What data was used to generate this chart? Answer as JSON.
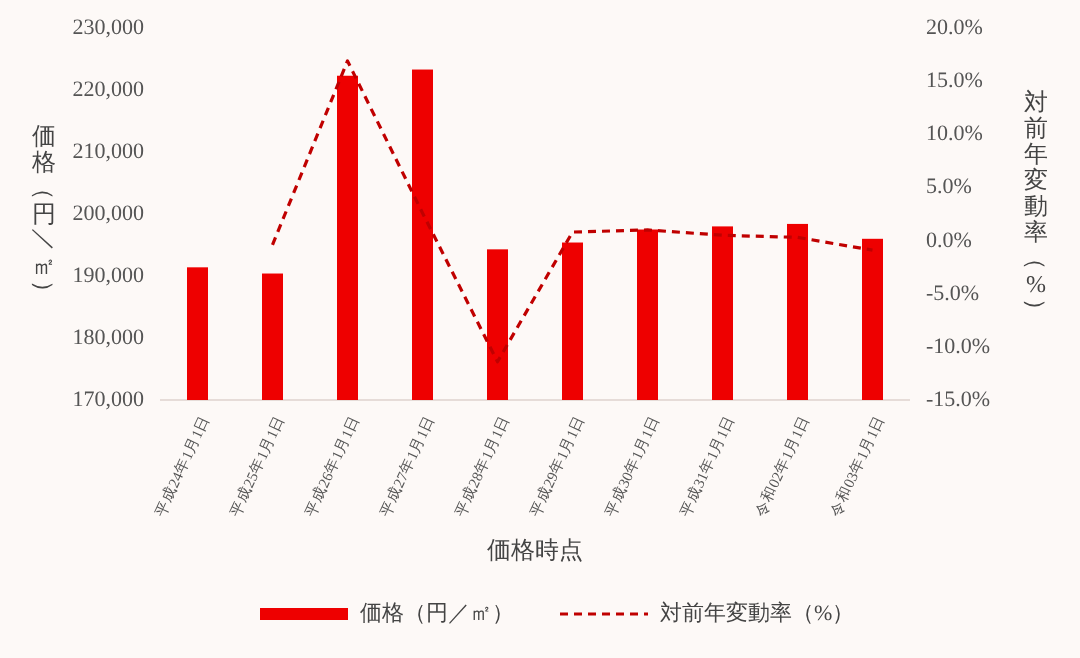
{
  "chart_data": {
    "type": "bar",
    "xlabel": "価格時点",
    "ylabel": "価格（円／㎡）",
    "y2label": "対前年変動率（%）",
    "categories": [
      "平成24年1月1日",
      "平成25年1月1日",
      "平成26年1月1日",
      "平成27年1月1日",
      "平成28年1月1日",
      "平成29年1月1日",
      "平成30年1月1日",
      "平成31年1月1日",
      "令和02年1月1日",
      "令和03年1月1日"
    ],
    "series": [
      {
        "name": "価格（円／㎡）",
        "color": "#ee0000",
        "values": [
          191400,
          190400,
          222300,
          223300,
          194300,
          195400,
          197500,
          198000,
          198400,
          196000
        ]
      },
      {
        "name": "対前年変動率（%）",
        "type": "line",
        "axis": "y2",
        "color": "#c00000",
        "line_style": "dashed",
        "marker": "none",
        "values": [
          null,
          -0.4,
          16.9,
          2.6,
          -11.4,
          0.8,
          1.0,
          0.5,
          0.3,
          -0.9
        ]
      }
    ],
    "ylim": [
      170000,
      230000
    ],
    "yticks": [
      {
        "value": 170000,
        "label": "170,000"
      },
      {
        "value": 180000,
        "label": "180,000"
      },
      {
        "value": 190000,
        "label": "190,000"
      },
      {
        "value": 200000,
        "label": "200,000"
      },
      {
        "value": 210000,
        "label": "210,000"
      },
      {
        "value": 220000,
        "label": "220,000"
      },
      {
        "value": 230000,
        "label": "230,000"
      }
    ],
    "y2lim": [
      -15,
      20
    ],
    "y2ticks": [
      {
        "value": -15,
        "label": "-15.0%"
      },
      {
        "value": -10,
        "label": "-10.0%"
      },
      {
        "value": -5,
        "label": "-5.0%"
      },
      {
        "value": 0,
        "label": "0.0%"
      },
      {
        "value": 5,
        "label": "5.0%"
      },
      {
        "value": 10,
        "label": "10.0%"
      },
      {
        "value": 15,
        "label": "15.0%"
      },
      {
        "value": 20,
        "label": "20.0%"
      }
    ],
    "grid": false,
    "legend": "bottom"
  }
}
